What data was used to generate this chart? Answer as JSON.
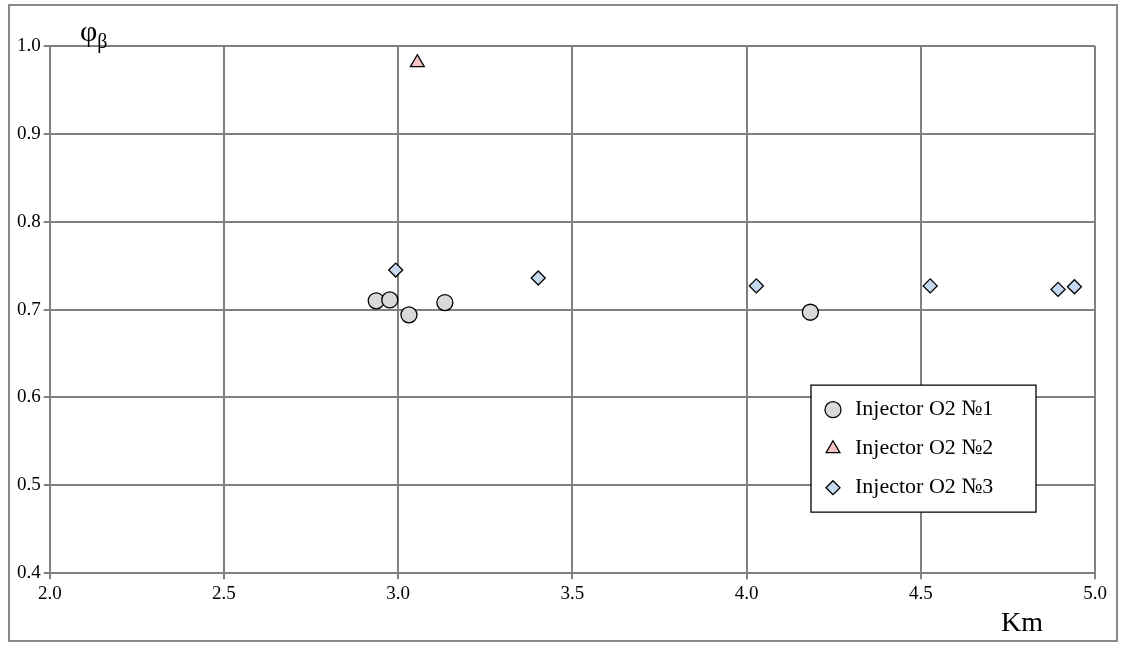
{
  "chart_data": {
    "type": "scatter",
    "xlabel": "Km",
    "ylabel": "φ$_{β}$",
    "xlim": [
      2.0,
      5.0
    ],
    "xticks": [
      {
        "value": 2,
        "label": "2.0"
      },
      2.5,
      {
        "value": 3,
        "label": "3.0"
      },
      3.5,
      {
        "value": 4,
        "label": "4.0"
      },
      4.5,
      {
        "value": 5,
        "label": "5.0"
      }
    ],
    "ylim": [
      0.4,
      1.0
    ],
    "yticks": [
      0.4,
      0.5,
      0.6,
      0.7,
      0.8,
      0.9,
      {
        "value": 1,
        "label": "1.0"
      }
    ],
    "grid": true,
    "legend": "bottom right",
    "series": [
      {
        "name": "Injector O2 №1",
        "color": "#d9d9d9",
        "marker": "circle",
        "x": [
          2.937,
          2.976,
          3.031,
          3.134,
          4.183
        ],
        "values": [
          0.71,
          0.711,
          0.694,
          0.708,
          0.697
        ]
      },
      {
        "name": "Injector O2 №2",
        "color": "#f4c2c2",
        "marker": "triangle",
        "x": [
          3.055
        ],
        "values": [
          0.981
        ]
      },
      {
        "name": "Injector O2 №3",
        "color": "#c5d9f1",
        "marker": "diamond",
        "x": [
          2.993,
          3.402,
          4.028,
          4.527,
          4.894,
          4.941
        ],
        "values": [
          0.745,
          0.736,
          0.727,
          0.727,
          0.723,
          0.726
        ]
      }
    ]
  }
}
